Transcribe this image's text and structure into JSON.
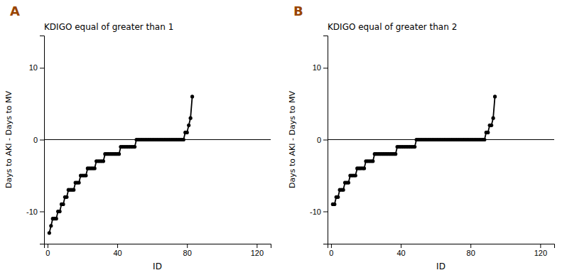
{
  "chart_data": [
    {
      "type": "line",
      "marker": "circle",
      "color": "#000000",
      "title": "KDIGO equal of greater than 1",
      "xlabel": "ID",
      "ylabel": "Days to AKI - Days to MV",
      "xlim": [
        -2,
        128
      ],
      "ylim": [
        -14.5,
        14.5
      ],
      "xticks": [
        0,
        40,
        80,
        120
      ],
      "yticks": [
        -10,
        0,
        10
      ],
      "annotations": [
        {
          "text": "A",
          "color": "#994400"
        },
        {
          "type": "hline",
          "y": 0,
          "color": "#000000"
        }
      ],
      "values": [
        -13,
        -12,
        -11,
        -11,
        -11,
        -10,
        -10,
        -9,
        -9,
        -8,
        -8,
        -7,
        -7,
        -7,
        -7,
        -6,
        -6,
        -6,
        -5,
        -5,
        -5,
        -5,
        -4,
        -4,
        -4,
        -4,
        -4,
        -3,
        -3,
        -3,
        -3,
        -3,
        -2,
        -2,
        -2,
        -2,
        -2,
        -2,
        -2,
        -2,
        -2,
        -1,
        -1,
        -1,
        -1,
        -1,
        -1,
        -1,
        -1,
        -1,
        0,
        0,
        0,
        0,
        0,
        0,
        0,
        0,
        0,
        0,
        0,
        0,
        0,
        0,
        0,
        0,
        0,
        0,
        0,
        0,
        0,
        0,
        0,
        0,
        0,
        0,
        0,
        0,
        1,
        1,
        2,
        3,
        6
      ]
    },
    {
      "type": "line",
      "marker": "circle",
      "color": "#000000",
      "title": "KDIGO equal of greater than 2",
      "xlabel": "ID",
      "ylabel": "Days to AKI - Days to MV",
      "xlim": [
        -2,
        128
      ],
      "ylim": [
        -14.5,
        14.5
      ],
      "xticks": [
        0,
        40,
        80,
        120
      ],
      "yticks": [
        -10,
        0,
        10
      ],
      "annotations": [
        {
          "text": "B",
          "color": "#994400"
        },
        {
          "type": "hline",
          "y": 0,
          "color": "#000000"
        }
      ],
      "values": [
        -9,
        -9,
        -8,
        -8,
        -7,
        -7,
        -7,
        -6,
        -6,
        -6,
        -5,
        -5,
        -5,
        -5,
        -4,
        -4,
        -4,
        -4,
        -4,
        -3,
        -3,
        -3,
        -3,
        -3,
        -2,
        -2,
        -2,
        -2,
        -2,
        -2,
        -2,
        -2,
        -2,
        -2,
        -2,
        -2,
        -2,
        -1,
        -1,
        -1,
        -1,
        -1,
        -1,
        -1,
        -1,
        -1,
        -1,
        -1,
        0,
        0,
        0,
        0,
        0,
        0,
        0,
        0,
        0,
        0,
        0,
        0,
        0,
        0,
        0,
        0,
        0,
        0,
        0,
        0,
        0,
        0,
        0,
        0,
        0,
        0,
        0,
        0,
        0,
        0,
        0,
        0,
        0,
        0,
        0,
        0,
        0,
        0,
        0,
        0,
        1,
        1,
        2,
        2,
        3,
        6
      ]
    }
  ]
}
